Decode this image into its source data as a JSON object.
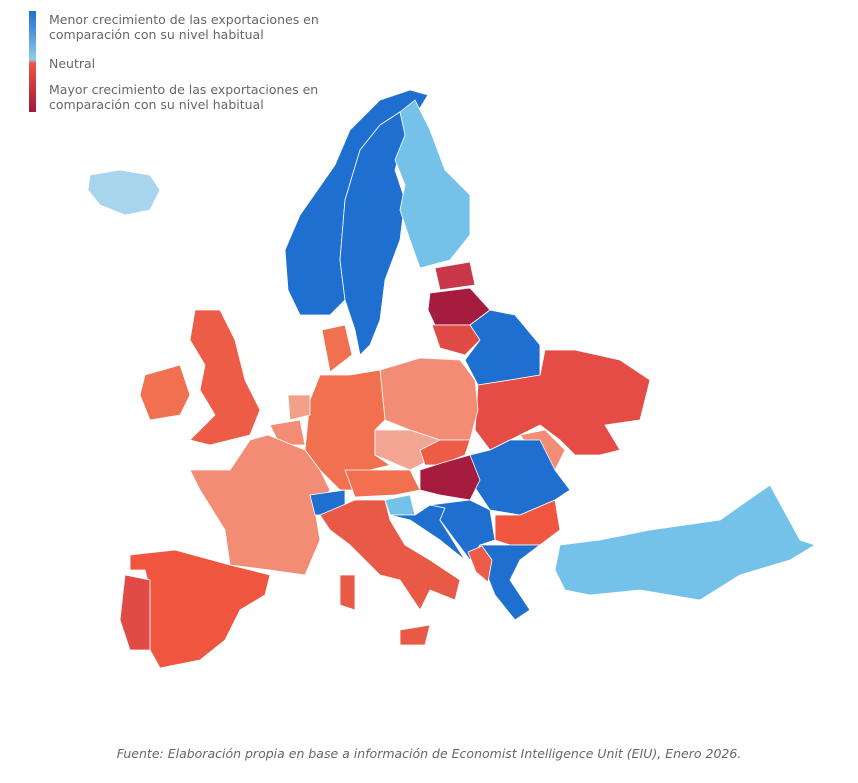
{
  "legend": {
    "lower": "Menor crecimiento de las exportaciones en comparación con su nivel habitual",
    "neutral": "Neutral",
    "higher": "Mayor crecimiento de las exportaciones en comparación con su nivel habitual",
    "colors": [
      "#1f6fd0",
      "#8fcbec",
      "#f0533f",
      "#9b1b3f"
    ]
  },
  "map_fills": {
    "norway": "#1f6fd0",
    "sweden": "#1f6fd0",
    "finland": "#74c2ea",
    "iceland": "#a8d5ee",
    "estonia": "#c8384a",
    "latvia": "#a51c3f",
    "lithuania": "#e04b46",
    "belarus": "#1f6fd0",
    "ukraine": "#e54c45",
    "moldova": "#f28c75",
    "romania": "#1f6fd0",
    "poland": "#f28c75",
    "germany": "#f0704f",
    "denmark": "#f0704f",
    "netherlands": "#f3a08a",
    "belgium": "#f28c75",
    "france": "#f28c75",
    "switzerland": "#1f6fd0",
    "austria": "#f0704f",
    "czechia": "#f3a594",
    "slovakia": "#ec5c47",
    "hungary": "#a51c3f",
    "slovenia": "#74c2ea",
    "croatia": "#1f6fd0",
    "serbia": "#1f6fd0",
    "bulgaria": "#f0563f",
    "greece": "#1f6fd0",
    "albania": "#ec5c47",
    "italy": "#e85a45",
    "sicily": "#e85a45",
    "sardinia": "#e85a45",
    "spain": "#f0563f",
    "portugal": "#e04b46",
    "uk": "#ec5c47",
    "ireland": "#f0704f",
    "turkey": "#74c2ea"
  },
  "source": "Fuente: Elaboración propia en base a información de Economist Intelligence Unit (EIU), Enero 2026."
}
